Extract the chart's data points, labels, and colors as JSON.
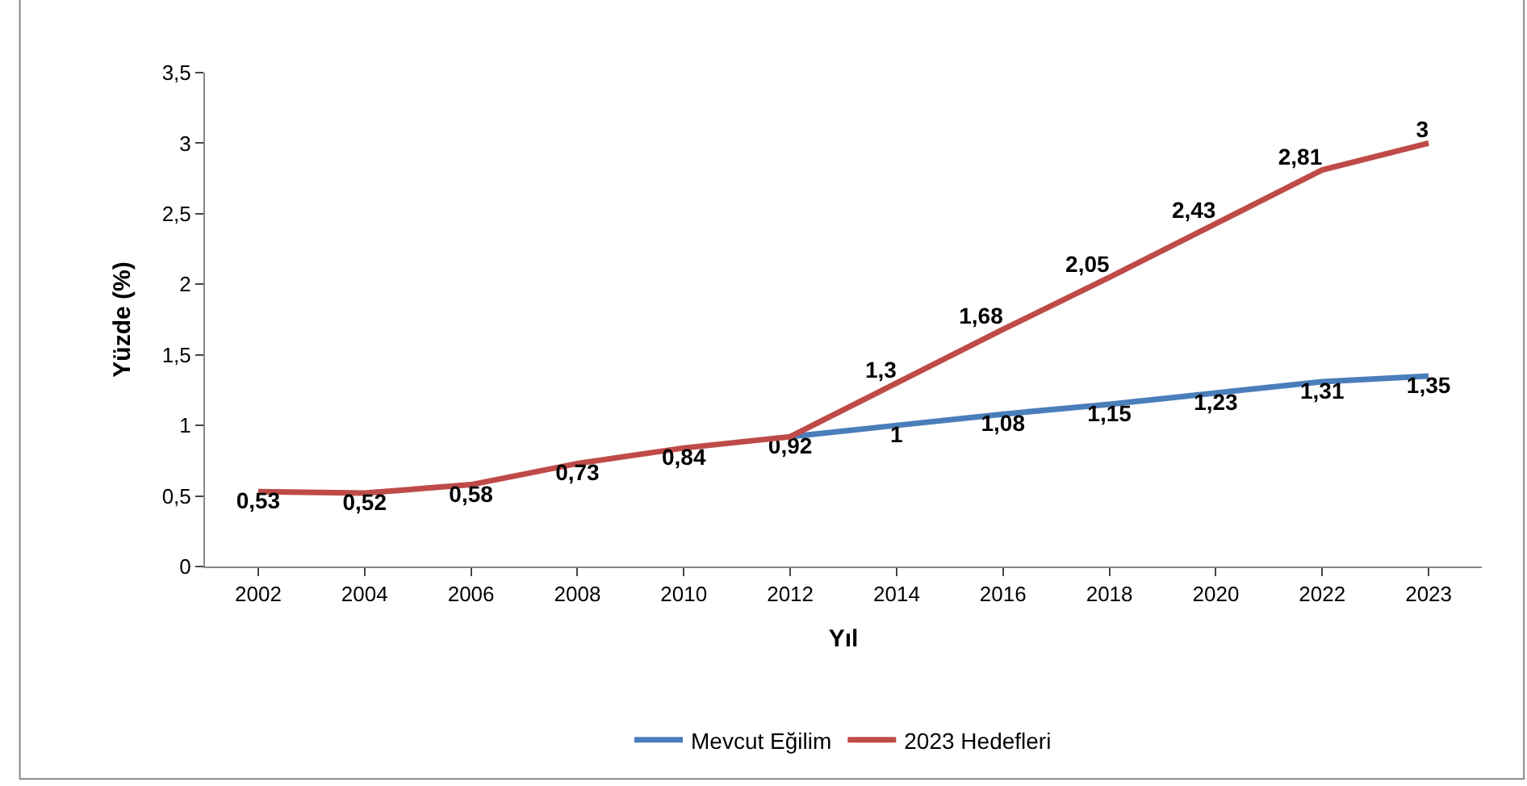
{
  "chart_data": {
    "type": "line",
    "xlabel": "Yıl",
    "ylabel": "Yüzde (%)",
    "categories": [
      "2002",
      "2004",
      "2006",
      "2008",
      "2010",
      "2012",
      "2014",
      "2016",
      "2018",
      "2020",
      "2022",
      "2023"
    ],
    "series": [
      {
        "name": "Mevcut Eğilim",
        "color": "#4a7ebb",
        "values": [
          null,
          null,
          null,
          null,
          null,
          0.92,
          1,
          1.08,
          1.15,
          1.23,
          1.31,
          1.35
        ],
        "value_labels": [
          null,
          null,
          null,
          null,
          null,
          "0,92",
          "1",
          "1,08",
          "1,15",
          "1,23",
          "1,31",
          "1,35"
        ]
      },
      {
        "name": "2023 Hedefleri",
        "color": "#be4b48",
        "values": [
          0.53,
          0.52,
          0.58,
          0.73,
          0.84,
          0.92,
          1.3,
          1.68,
          2.05,
          2.43,
          2.81,
          3
        ],
        "value_labels": [
          "0,53",
          "0,52",
          "0,58",
          "0,73",
          "0,84",
          null,
          "1,3",
          "1,68",
          "2,05",
          "2,43",
          "2,81",
          "3"
        ]
      }
    ],
    "ylim": [
      0,
      3.5
    ],
    "yticks": [
      {
        "value": 0,
        "label": "0"
      },
      {
        "value": 0.5,
        "label": "0,5"
      },
      {
        "value": 1,
        "label": "1"
      },
      {
        "value": 1.5,
        "label": "1,5"
      },
      {
        "value": 2,
        "label": "2"
      },
      {
        "value": 2.5,
        "label": "2,5"
      },
      {
        "value": 3,
        "label": "3"
      },
      {
        "value": 3.5,
        "label": "3,5"
      }
    ],
    "legend": "bottom",
    "marker": "none",
    "line_style": "solid"
  }
}
